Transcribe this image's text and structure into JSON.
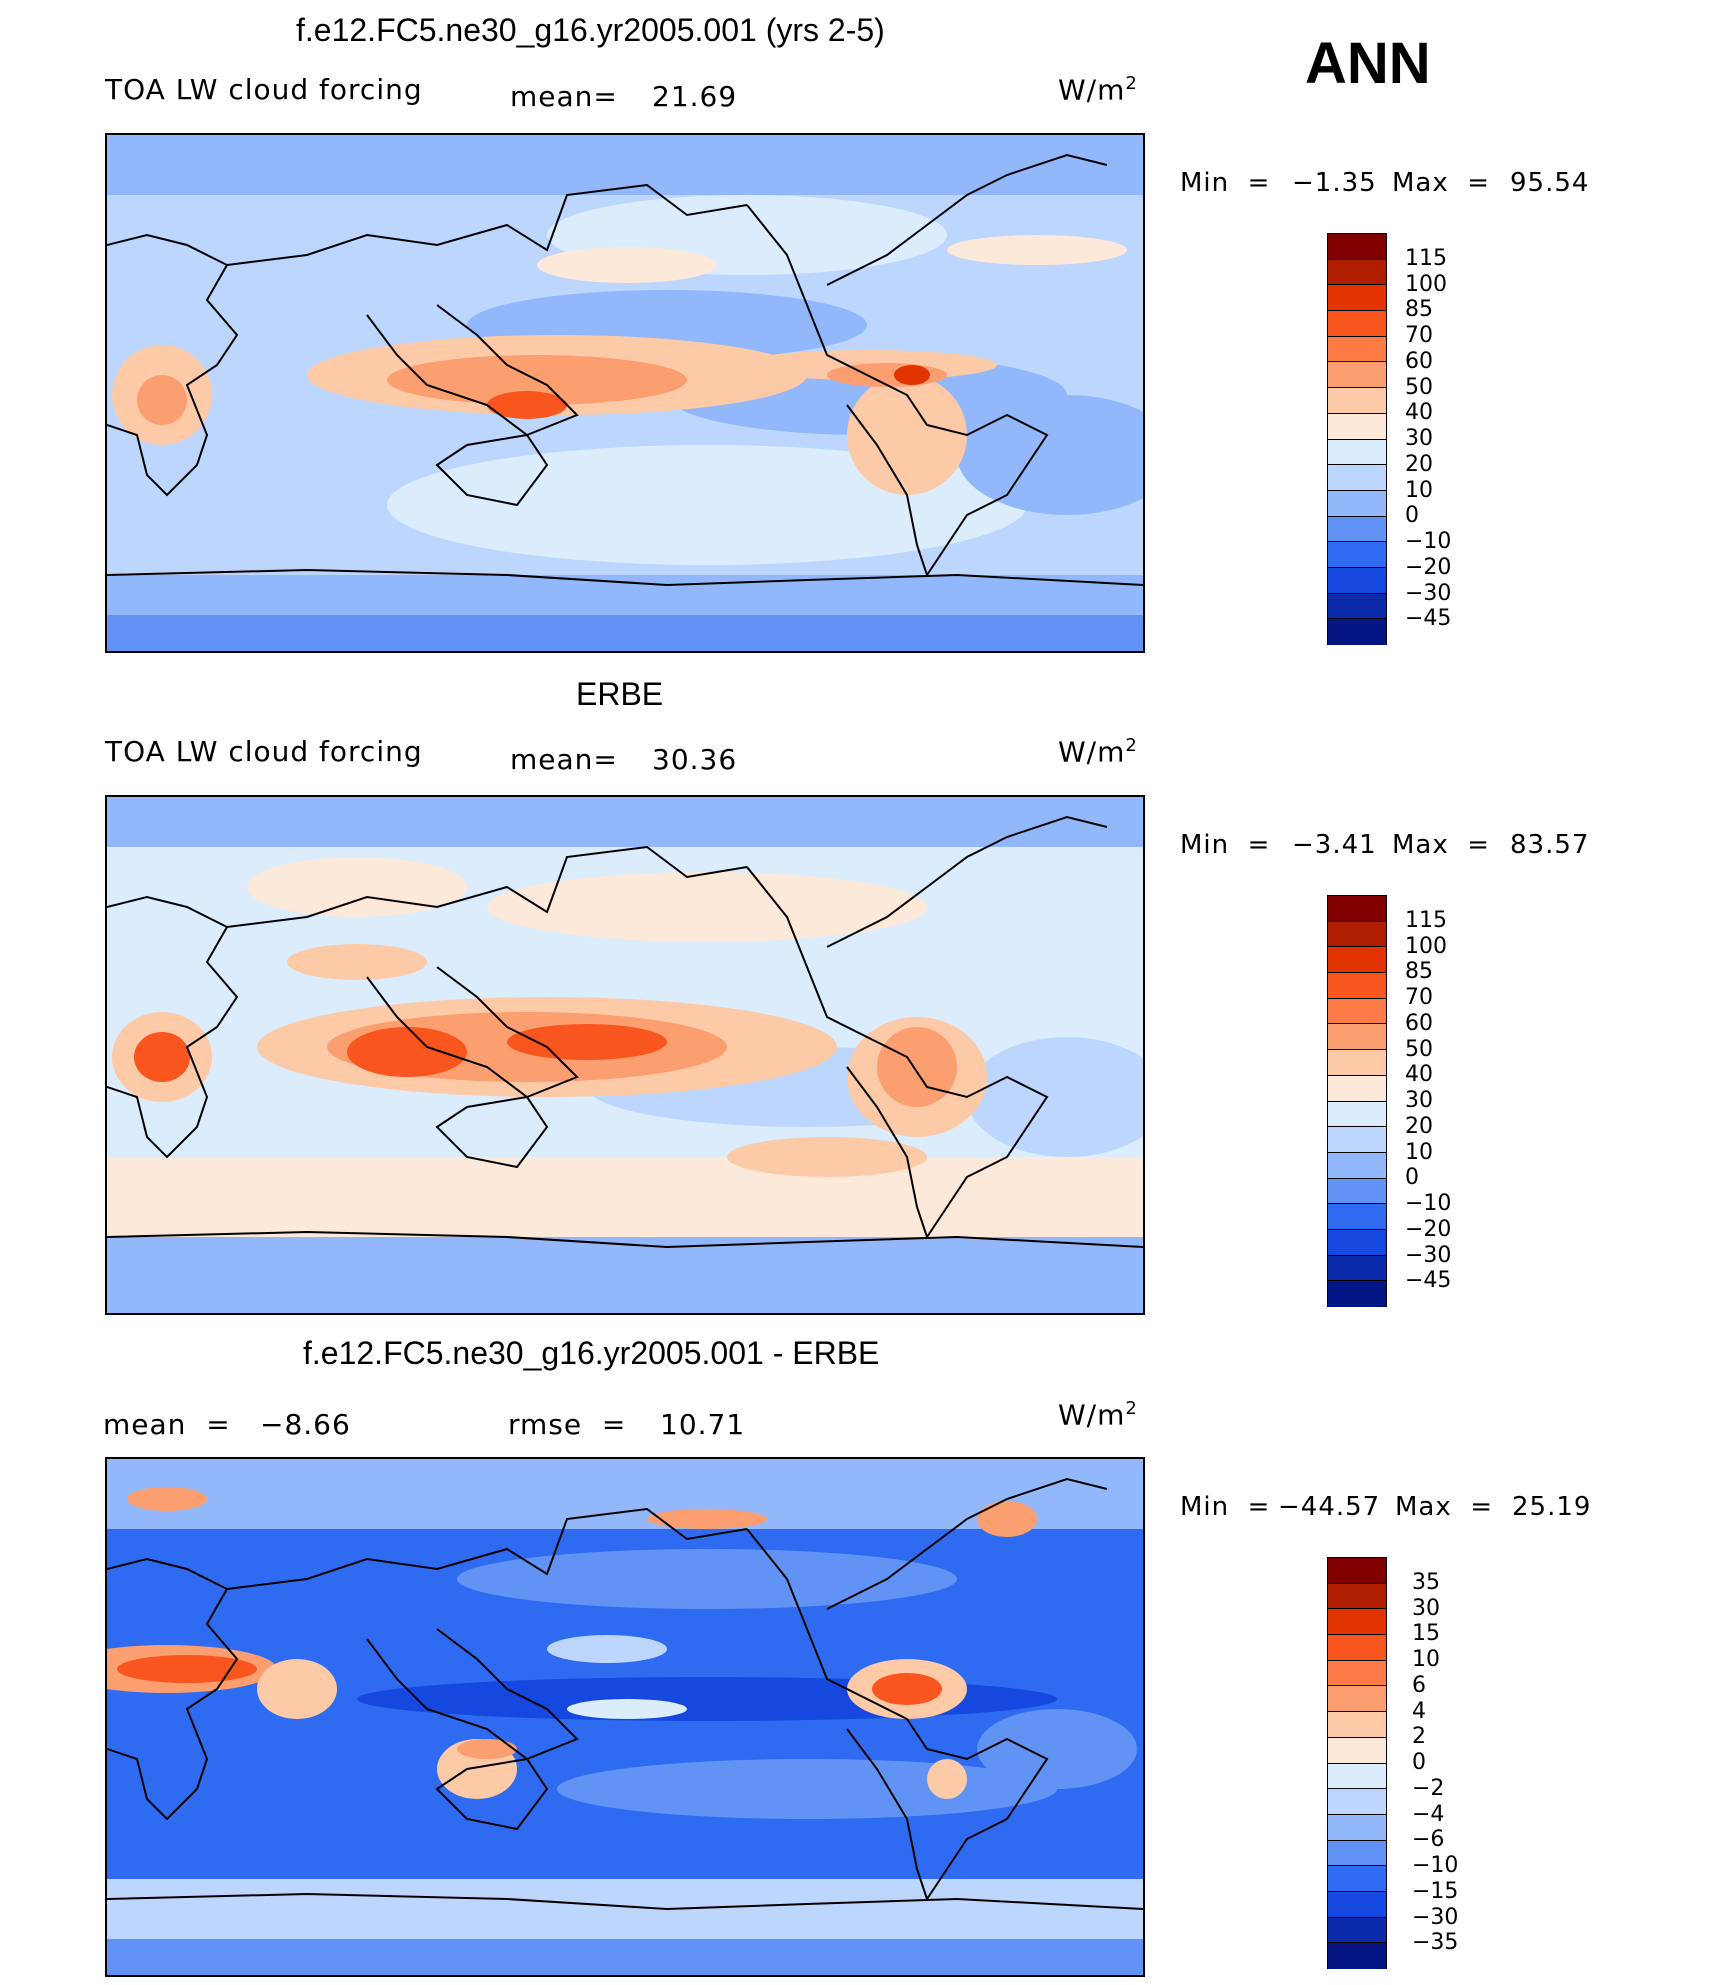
{
  "season": "ANN",
  "units": "W/m",
  "units_sup": "2",
  "panels": [
    {
      "title": "f.e12.FC5.ne30_g16.yr2005.001 (yrs 2-5)",
      "left_label": "TOA LW cloud forcing",
      "stat_label": "mean=",
      "stat_value": "21.69",
      "min_label": "Min",
      "min_value": "−1.35",
      "max_label": "Max",
      "max_value": "95.54"
    },
    {
      "title": "ERBE",
      "left_label": "TOA LW cloud forcing",
      "stat_label": "mean=",
      "stat_value": "30.36",
      "min_label": "Min",
      "min_value": "−3.41",
      "max_label": "Max",
      "max_value": "83.57"
    },
    {
      "title": "f.e12.FC5.ne30_g16.yr2005.001 - ERBE",
      "mean_label": "mean",
      "mean_value": "−8.66",
      "rmse_label": "rmse",
      "rmse_value": "10.71",
      "min_label": "Min",
      "min_value": "−44.57",
      "max_label": "Max",
      "max_value": "25.19"
    }
  ],
  "chart_data": [
    {
      "type": "heatmap",
      "title": "f.e12.FC5.ne30_g16.yr2005.001 (yrs 2-5)",
      "variable": "TOA LW cloud forcing",
      "mean": 21.69,
      "min": -1.35,
      "max": 95.54,
      "colorbar_levels": [
        "115",
        "100",
        "85",
        "70",
        "60",
        "50",
        "40",
        "30",
        "20",
        "10",
        "0",
        "−10",
        "−20",
        "−30",
        "−45"
      ],
      "colors": [
        "#800000",
        "#b01e00",
        "#e23400",
        "#f8551f",
        "#fb7a46",
        "#fc9f70",
        "#fdcaa8",
        "#fde9da",
        "#dbecfd",
        "#bcd6fd",
        "#92b8fb",
        "#6193f5",
        "#2f6bf1",
        "#1448de",
        "#0a2aaa",
        "#031684"
      ]
    },
    {
      "type": "heatmap",
      "title": "ERBE",
      "variable": "TOA LW cloud forcing",
      "mean": 30.36,
      "min": -3.41,
      "max": 83.57,
      "colorbar_levels": [
        "115",
        "100",
        "85",
        "70",
        "60",
        "50",
        "40",
        "30",
        "20",
        "10",
        "0",
        "−10",
        "−20",
        "−30",
        "−45"
      ],
      "colors": [
        "#800000",
        "#b01e00",
        "#e23400",
        "#f8551f",
        "#fb7a46",
        "#fc9f70",
        "#fdcaa8",
        "#fde9da",
        "#dbecfd",
        "#bcd6fd",
        "#92b8fb",
        "#6193f5",
        "#2f6bf1",
        "#1448de",
        "#0a2aaa",
        "#031684"
      ]
    },
    {
      "type": "heatmap",
      "title": "f.e12.FC5.ne30_g16.yr2005.001 - ERBE",
      "mean": -8.66,
      "rmse": 10.71,
      "min": -44.57,
      "max": 25.19,
      "colorbar_levels": [
        "35",
        "30",
        "15",
        "10",
        "6",
        "4",
        "2",
        "0",
        "−2",
        "−4",
        "−6",
        "−10",
        "−15",
        "−30",
        "−35"
      ],
      "colors": [
        "#800000",
        "#b01e00",
        "#e23400",
        "#f8551f",
        "#fb7a46",
        "#fc9f70",
        "#fdcaa8",
        "#fde9da",
        "#dbecfd",
        "#bcd6fd",
        "#92b8fb",
        "#6193f5",
        "#2f6bf1",
        "#1448de",
        "#0a2aaa",
        "#031684"
      ]
    }
  ]
}
